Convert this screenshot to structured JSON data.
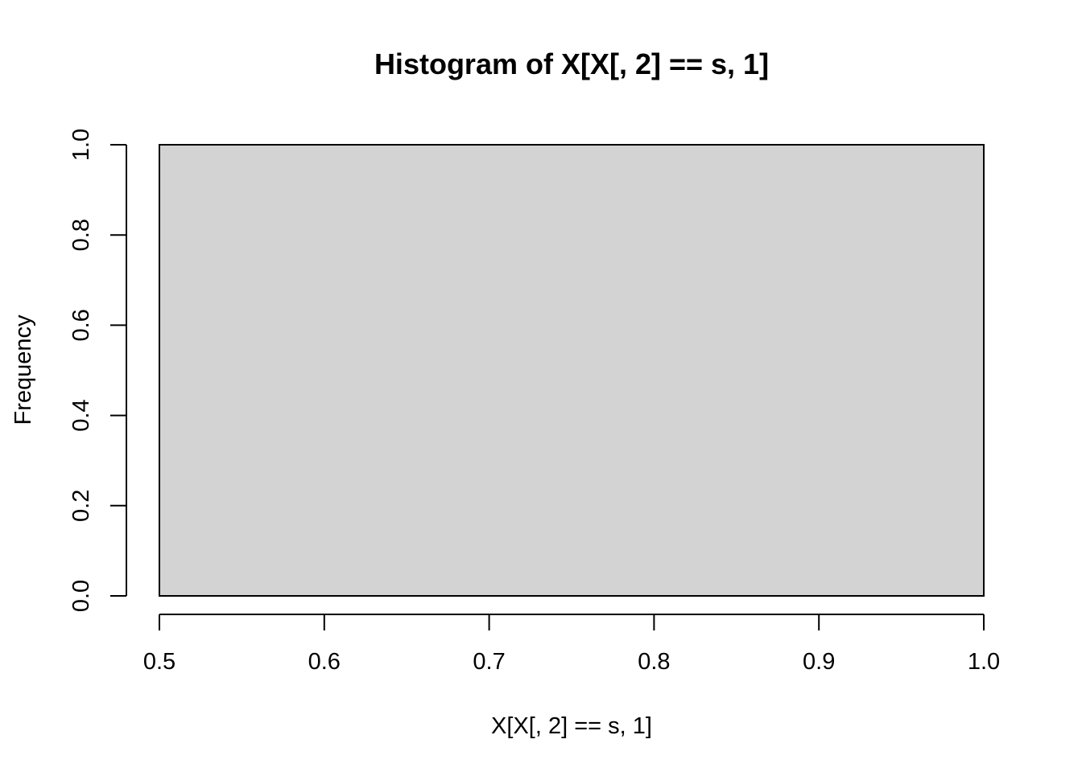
{
  "chart_data": {
    "type": "bar",
    "subtype": "histogram",
    "title": "Histogram of X[X[, 2] == s, 1]",
    "xlabel": "X[X[, 2] == s, 1]",
    "ylabel": "Frequency",
    "xlim": [
      0.5,
      1.0
    ],
    "ylim": [
      0.0,
      1.0
    ],
    "x_ticks": [
      "0.5",
      "0.6",
      "0.7",
      "0.8",
      "0.9",
      "1.0"
    ],
    "y_ticks": [
      "0.0",
      "0.2",
      "0.4",
      "0.6",
      "0.8",
      "1.0"
    ],
    "bins": [
      {
        "x0": 0.5,
        "x1": 1.0,
        "count": 1
      }
    ],
    "bar_color": "#d3d3d3",
    "grid": false,
    "legend": "none"
  }
}
